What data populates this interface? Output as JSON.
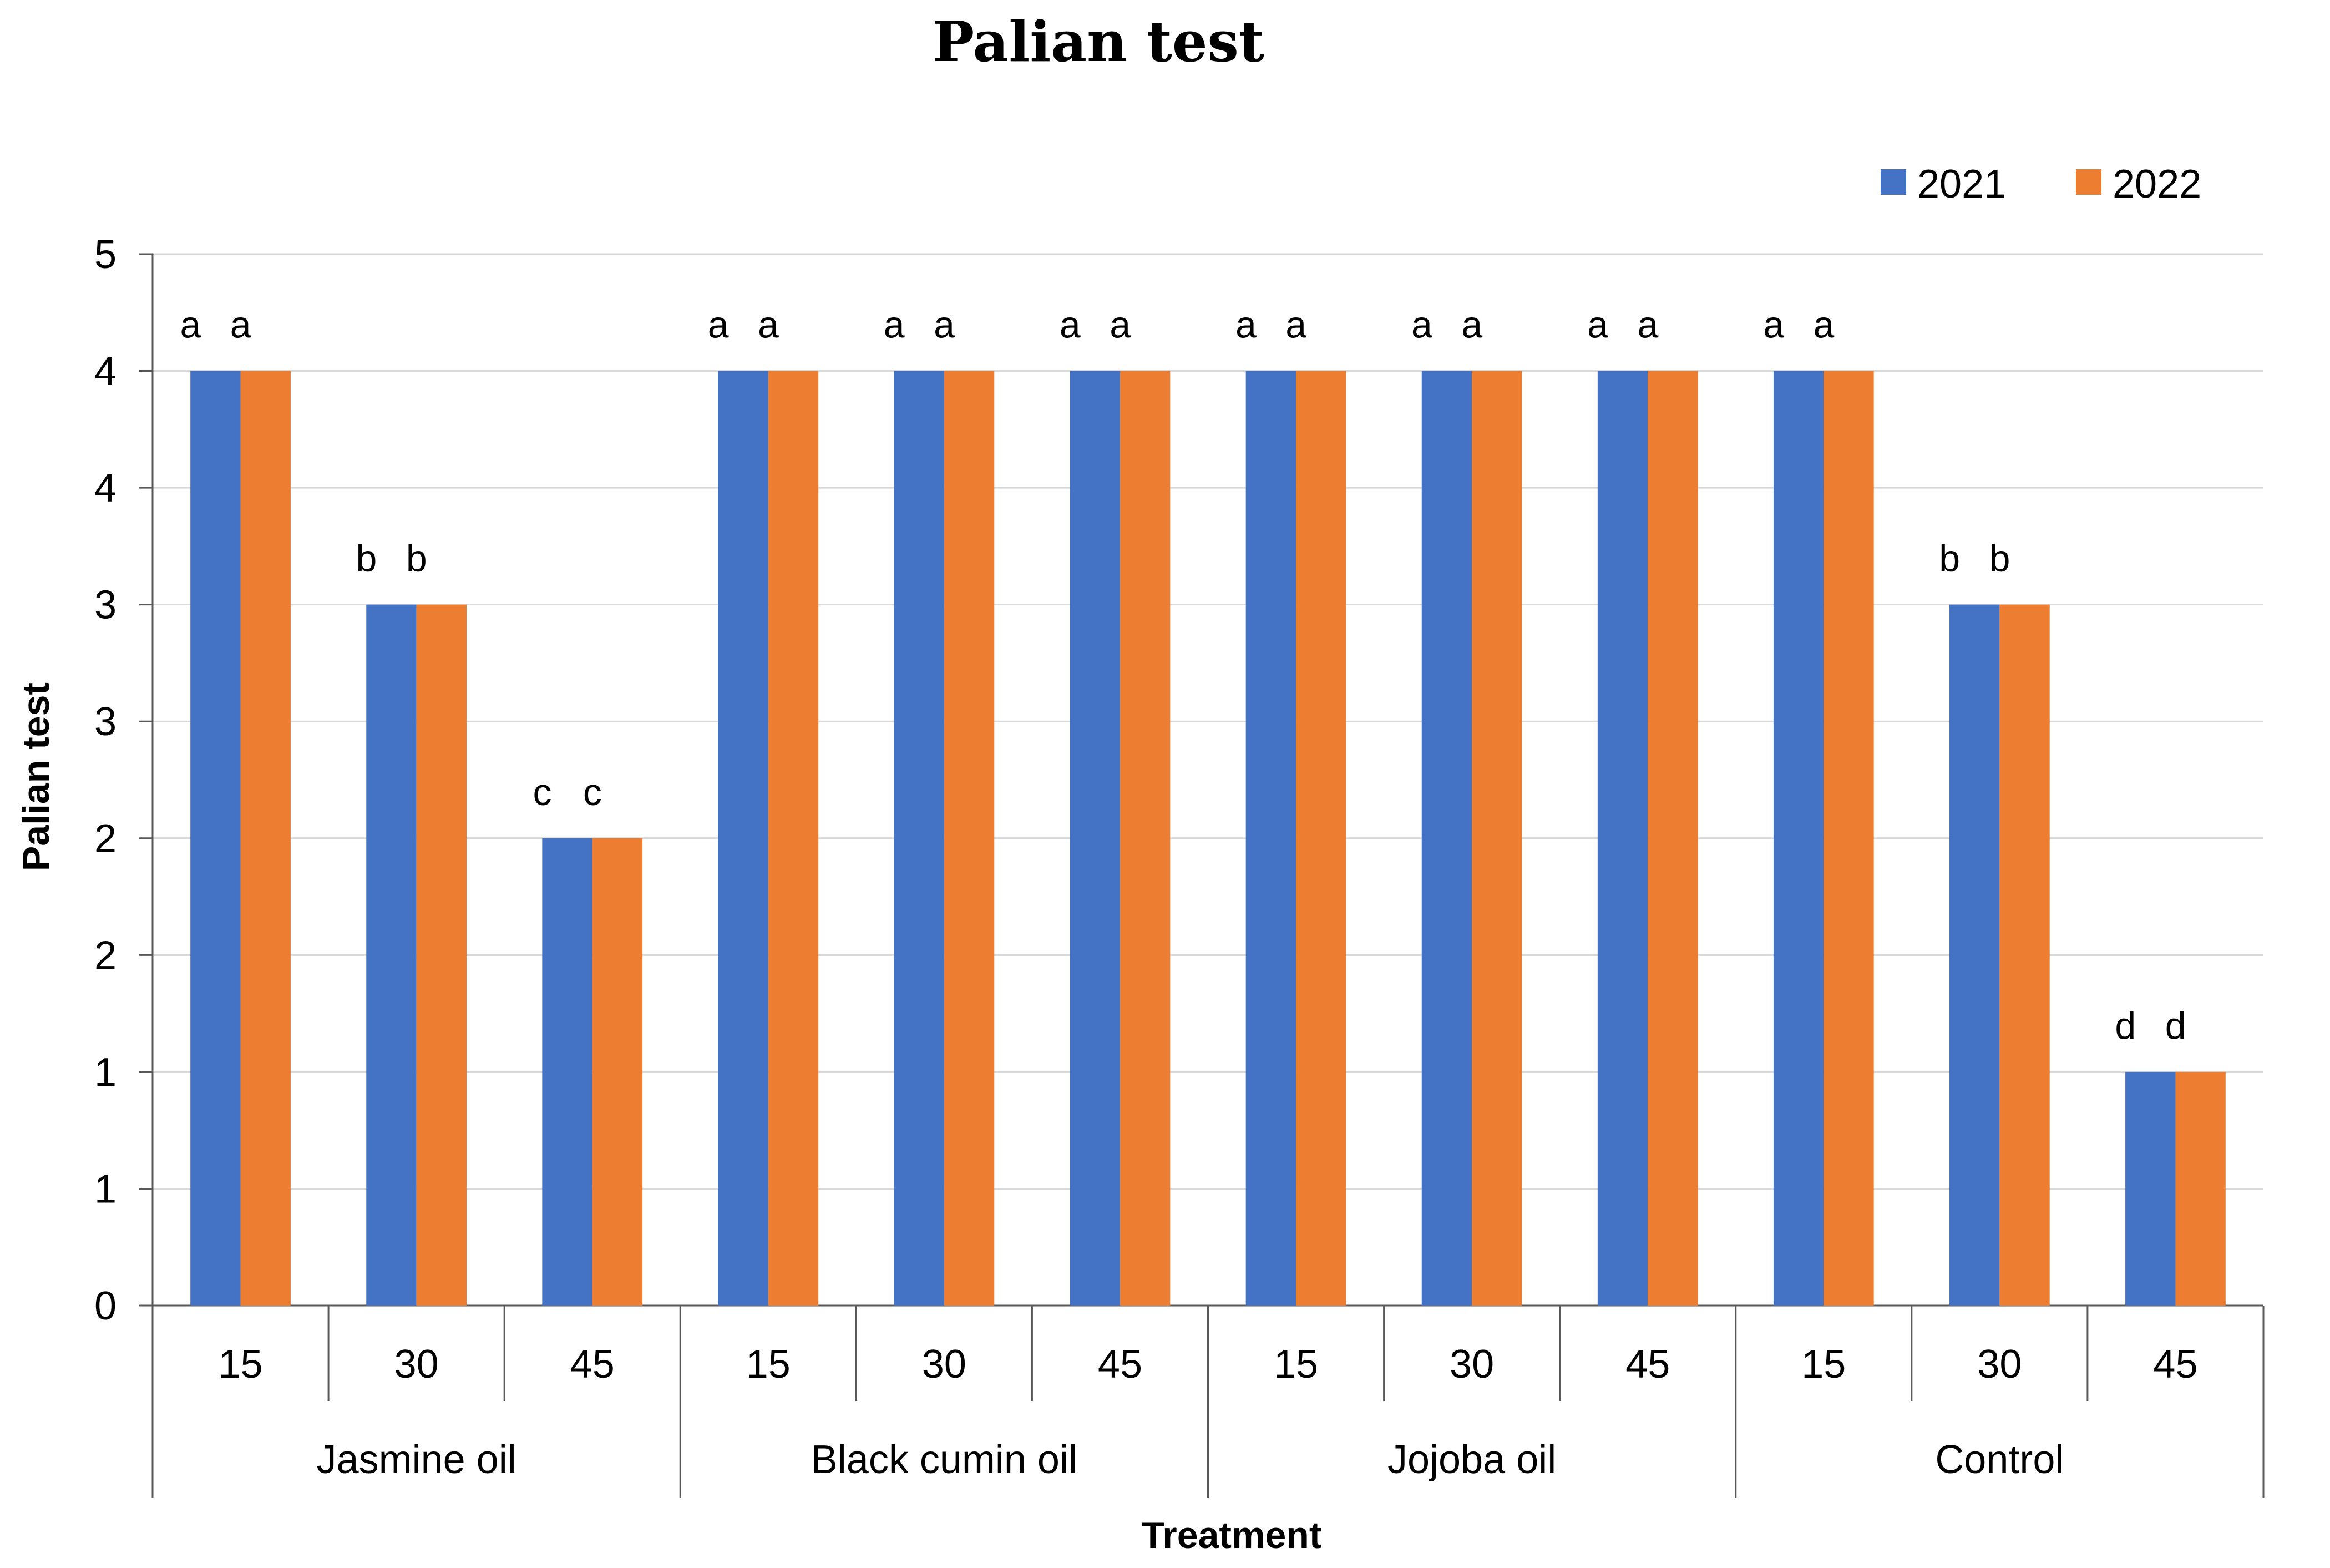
{
  "chart_data": {
    "type": "bar",
    "title": "Palian test",
    "xlabel": "Treatment",
    "ylabel": "Palian test",
    "y_tick_labels": [
      "0",
      "1",
      "1",
      "2",
      "2",
      "3",
      "3",
      "4",
      "4",
      "5"
    ],
    "ylim": [
      0,
      4.5
    ],
    "grid": true,
    "legend_position": "top-right",
    "groups": [
      {
        "name": "Jasmine oil",
        "categories": [
          "15",
          "30",
          "45"
        ]
      },
      {
        "name": "Black cumin oil",
        "categories": [
          "15",
          "30",
          "45"
        ]
      },
      {
        "name": "Jojoba oil",
        "categories": [
          "15",
          "30",
          "45"
        ]
      },
      {
        "name": "Control",
        "categories": [
          "15",
          "30",
          "45"
        ]
      }
    ],
    "series": [
      {
        "name": "2021",
        "color": "#4472C4",
        "values": [
          4,
          3,
          2,
          4,
          4,
          4,
          4,
          4,
          4,
          4,
          3,
          1
        ],
        "labels": [
          "a",
          "b",
          "c",
          "a",
          "a",
          "a",
          "a",
          "a",
          "a",
          "a",
          "b",
          "d"
        ]
      },
      {
        "name": "2022",
        "color": "#ED7D31",
        "values": [
          4,
          3,
          2,
          4,
          4,
          4,
          4,
          4,
          4,
          4,
          3,
          1
        ],
        "labels": [
          "a",
          "b",
          "c",
          "a",
          "a",
          "a",
          "a",
          "a",
          "a",
          "a",
          "b",
          "d"
        ]
      }
    ]
  }
}
